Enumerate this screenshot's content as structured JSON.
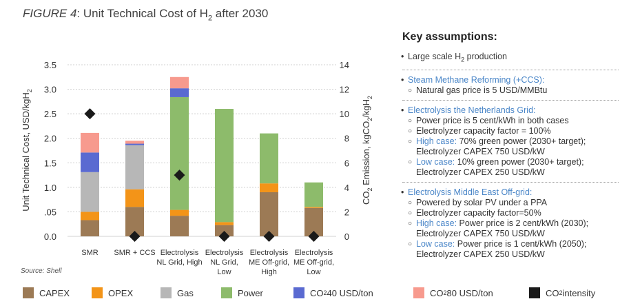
{
  "figure": {
    "label": "FIGURE 4",
    "title_rest": ": Unit Technical Cost of H",
    "title_sub": "2",
    "title_tail": " after 2030"
  },
  "source": "Source: Shell",
  "colors": {
    "CAPEX": "#9c7a55",
    "OPEX": "#f39418",
    "Gas": "#b7b7b7",
    "Power": "#8dbb6b",
    "CO2_40": "#5a6ad1",
    "CO2_80": "#f79a8e",
    "intensity": "#1a1a1a"
  },
  "chart_data": {
    "type": "bar",
    "stacked": true,
    "categories": [
      [
        "SMR"
      ],
      [
        "SMR + CCS"
      ],
      [
        "Electrolysis",
        "NL Grid, High"
      ],
      [
        "Electrolysis",
        "NL Grid,",
        "Low"
      ],
      [
        "Electrolysis",
        "ME Off-grid,",
        "High"
      ],
      [
        "Electrolysis",
        "ME Off-grid,",
        "Low"
      ]
    ],
    "series": [
      {
        "name": "CAPEX",
        "values": [
          0.33,
          0.6,
          0.42,
          0.23,
          0.9,
          0.58
        ]
      },
      {
        "name": "OPEX",
        "values": [
          0.17,
          0.36,
          0.12,
          0.06,
          0.18,
          0.02
        ]
      },
      {
        "name": "Gas",
        "values": [
          0.81,
          0.9,
          0,
          0,
          0,
          0
        ]
      },
      {
        "name": "Power",
        "values": [
          0,
          0,
          2.3,
          2.31,
          1.02,
          0.5
        ]
      },
      {
        "name": "CO2 40 USD/ton",
        "values": [
          0.4,
          0.03,
          0.18,
          0,
          0,
          0
        ]
      },
      {
        "name": "CO2 80 USD/ton",
        "values": [
          0.4,
          0.06,
          0.23,
          0,
          0,
          0
        ]
      }
    ],
    "co2_intensity": [
      10,
      0,
      5,
      0,
      0,
      0
    ],
    "ylabel": "Unit Technical Cost, USD/kgH",
    "ylabel_sub": "2",
    "y2label_pre": "CO",
    "y2label_sub1": "2",
    "y2label_mid": " Emission, kgCO",
    "y2label_sub2": "2",
    "y2label_tail": "/kgH",
    "y2label_sub3": "2",
    "ylim": [
      0,
      3.5
    ],
    "y2lim": [
      0,
      14
    ],
    "yticks": [
      "0.0",
      ".05",
      "1.0",
      "1.5",
      "2.0",
      "2.5",
      "3.0",
      "3.5"
    ],
    "y2ticks": [
      "0",
      "2",
      "4",
      "6",
      "8",
      "10",
      "12",
      "14"
    ]
  },
  "assumptions": {
    "heading": "Key assumptions:",
    "items": [
      {
        "head": "Large scale H",
        "head_sub": "2",
        "head_tail": " production"
      },
      {
        "head": "Steam Methane Reforming (+CCS):",
        "subs": [
          "Natural gas price is 5 USD/MMBtu"
        ]
      },
      {
        "head": "Electrolysis the Netherlands Grid:",
        "subs": [
          {
            "t": "Power price is 5 cent/kWh in both cases"
          },
          {
            "t": "Electrolyzer capacity factor = 100%"
          },
          {
            "b": "High case:",
            "t": " 70% green power (2030+ target);",
            "t2": "Electrolyzer CAPEX 750 USD/kW"
          },
          {
            "b": "Low case:",
            "t": " 10% green power (2030+ target);",
            "t2": "Electrolyzer CAPEX 250 USD/kW"
          }
        ]
      },
      {
        "head": "Electrolysis Middle East Off-grid:",
        "subs": [
          {
            "t": "Powered by solar PV under a PPA"
          },
          {
            "t": "Electrolyzer capacity factor=50%"
          },
          {
            "b": "High case:",
            "t": " Power price is 2 cent/kWh (2030);",
            "t2": "Electrolyzer CAPEX 750 USD/kW"
          },
          {
            "b": "Low case:",
            "t": " Power price is 1 cent/kWh (2050);",
            "t2": "Electrolyzer CAPEX 250 USD/kW"
          }
        ]
      }
    ]
  },
  "legend": [
    {
      "key": "CAPEX",
      "label": "CAPEX"
    },
    {
      "key": "OPEX",
      "label": "OPEX"
    },
    {
      "key": "Gas",
      "label": "Gas"
    },
    {
      "key": "Power",
      "label": "Power"
    },
    {
      "key": "CO2_40",
      "label_pre": "CO",
      "label_sub": "2",
      "label_tail": " 40 USD/ton"
    },
    {
      "key": "CO2_80",
      "label_pre": "CO",
      "label_sub": "2",
      "label_tail": " 80 USD/ton"
    },
    {
      "key": "intensity",
      "label_pre": "CO",
      "label_sub": "2",
      "label_tail": " intensity"
    }
  ]
}
